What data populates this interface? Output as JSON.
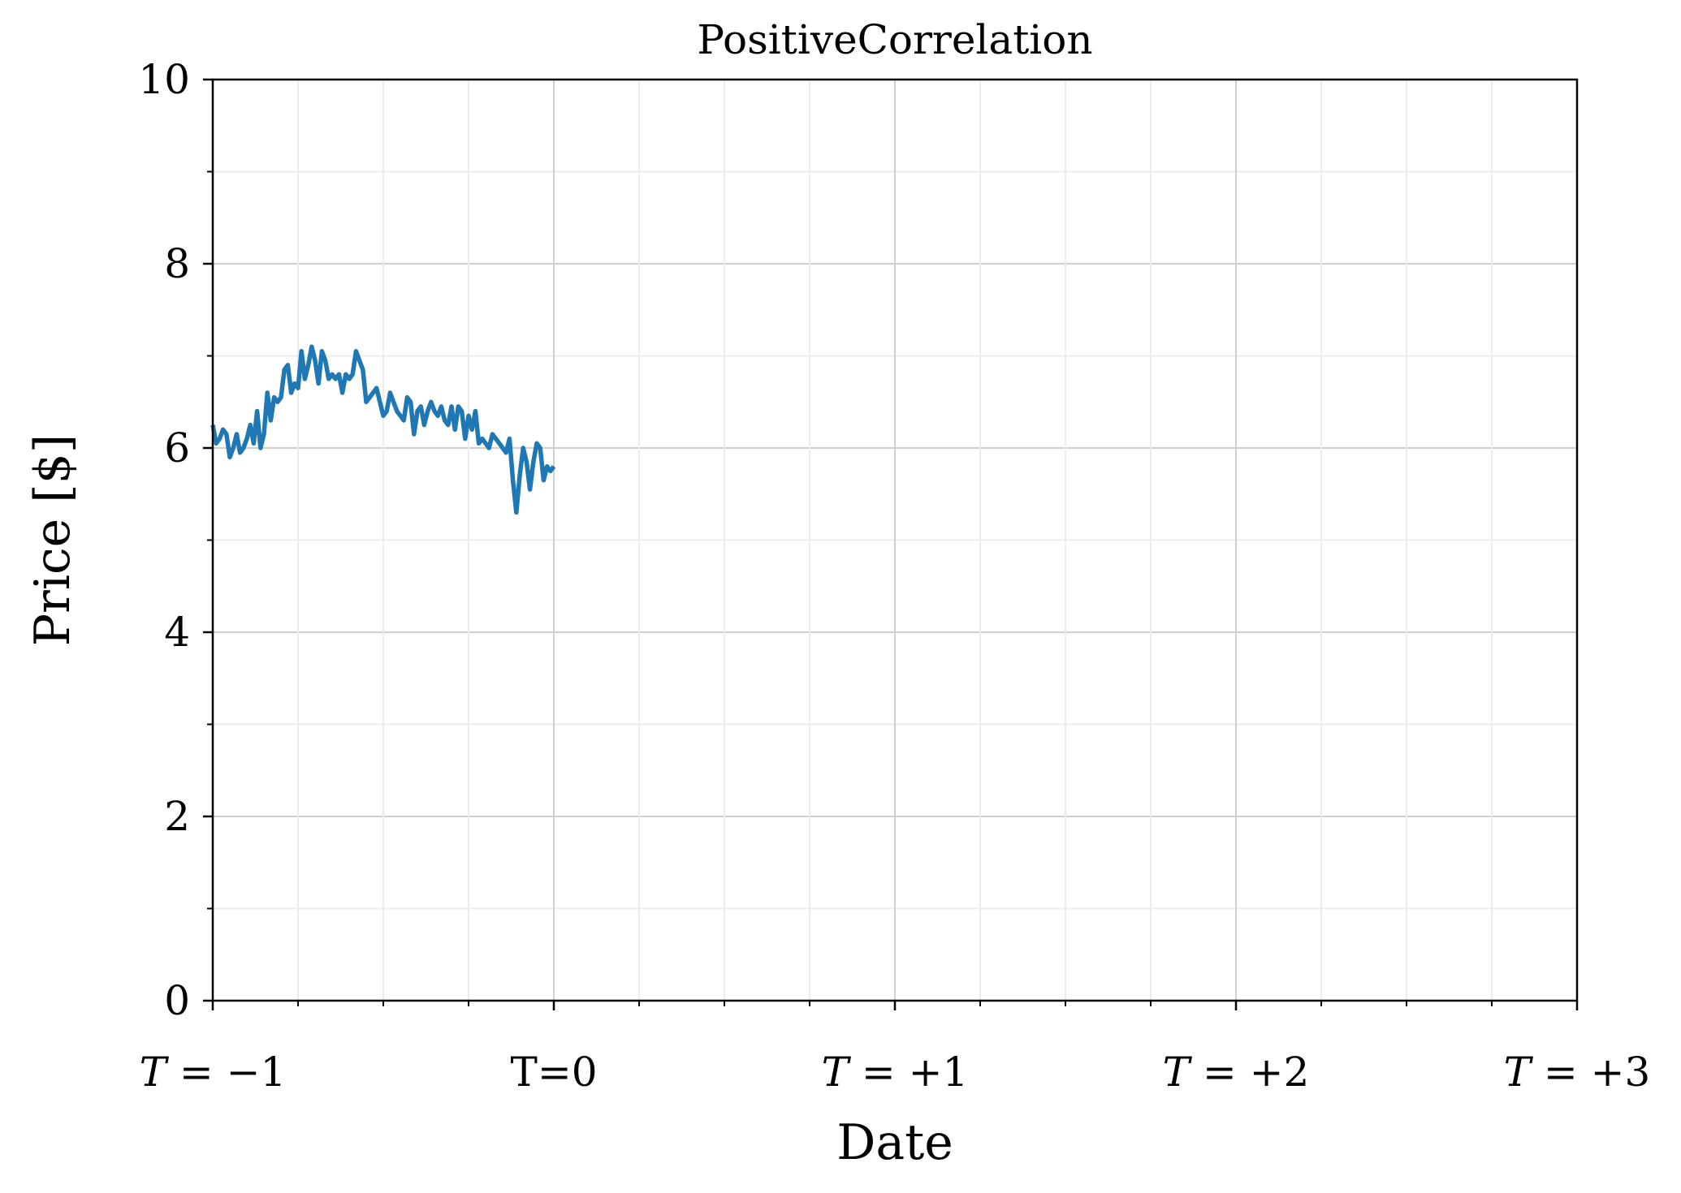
{
  "chart_data": {
    "type": "line",
    "title": "PositiveCorrelation",
    "xlabel": "Date",
    "ylabel": "Price [$]",
    "xlim": [
      -1,
      3
    ],
    "ylim": [
      0,
      10
    ],
    "grid": true,
    "x_ticks": [
      {
        "value": -1,
        "label": "T = −1",
        "italic_T": true
      },
      {
        "value": 0,
        "label": "T=0",
        "italic_T": false
      },
      {
        "value": 1,
        "label": "T = +1",
        "italic_T": true
      },
      {
        "value": 2,
        "label": "T = +2",
        "italic_T": true
      },
      {
        "value": 3,
        "label": "T = +3",
        "italic_T": true
      }
    ],
    "y_ticks": [
      {
        "value": 0,
        "label": "0"
      },
      {
        "value": 2,
        "label": "2"
      },
      {
        "value": 4,
        "label": "4"
      },
      {
        "value": 6,
        "label": "6"
      },
      {
        "value": 8,
        "label": "8"
      },
      {
        "value": 10,
        "label": "10"
      }
    ],
    "series": [
      {
        "color": "#1f77b4",
        "x": [
          -1.0,
          -0.99,
          -0.98,
          -0.97,
          -0.96,
          -0.95,
          -0.94,
          -0.93,
          -0.92,
          -0.91,
          -0.9,
          -0.89,
          -0.88,
          -0.87,
          -0.86,
          -0.85,
          -0.84,
          -0.83,
          -0.82,
          -0.81,
          -0.8,
          -0.79,
          -0.78,
          -0.77,
          -0.76,
          -0.75,
          -0.74,
          -0.73,
          -0.72,
          -0.71,
          -0.7,
          -0.69,
          -0.68,
          -0.67,
          -0.66,
          -0.65,
          -0.64,
          -0.63,
          -0.62,
          -0.61,
          -0.6,
          -0.59,
          -0.58,
          -0.57,
          -0.56,
          -0.55,
          -0.54,
          -0.53,
          -0.52,
          -0.51,
          -0.5,
          -0.49,
          -0.48,
          -0.47,
          -0.46,
          -0.45,
          -0.44,
          -0.43,
          -0.42,
          -0.41,
          -0.4,
          -0.39,
          -0.38,
          -0.37,
          -0.36,
          -0.35,
          -0.34,
          -0.33,
          -0.32,
          -0.31,
          -0.3,
          -0.29,
          -0.28,
          -0.27,
          -0.26,
          -0.25,
          -0.24,
          -0.23,
          -0.22,
          -0.21,
          -0.2,
          -0.19,
          -0.18,
          -0.17,
          -0.16,
          -0.15,
          -0.14,
          -0.13,
          -0.12,
          -0.11,
          -0.1,
          -0.09,
          -0.08,
          -0.07,
          -0.06,
          -0.05,
          -0.04,
          -0.03,
          -0.02,
          -0.01,
          0.0
        ],
        "y": [
          6.25,
          6.05,
          6.1,
          6.2,
          6.15,
          5.9,
          6.0,
          6.15,
          5.95,
          6.0,
          6.1,
          6.25,
          6.05,
          6.4,
          6.0,
          6.15,
          6.6,
          6.3,
          6.55,
          6.5,
          6.55,
          6.85,
          6.9,
          6.6,
          6.7,
          6.65,
          7.05,
          6.75,
          6.9,
          7.1,
          6.95,
          6.7,
          7.05,
          6.95,
          6.75,
          6.8,
          6.75,
          6.8,
          6.6,
          6.8,
          6.75,
          6.8,
          7.05,
          6.95,
          6.85,
          6.5,
          6.55,
          6.6,
          6.65,
          6.5,
          6.35,
          6.4,
          6.6,
          6.5,
          6.4,
          6.35,
          6.3,
          6.55,
          6.5,
          6.15,
          6.4,
          6.45,
          6.25,
          6.4,
          6.5,
          6.4,
          6.35,
          6.45,
          6.3,
          6.25,
          6.45,
          6.2,
          6.45,
          6.4,
          6.1,
          6.35,
          6.2,
          6.4,
          6.05,
          6.1,
          6.05,
          6.0,
          6.15,
          6.1,
          6.05,
          6.0,
          5.95,
          6.1,
          5.65,
          5.3,
          5.7,
          6.0,
          5.85,
          5.55,
          5.85,
          6.05,
          6.0,
          5.65,
          5.8,
          5.75,
          5.8
        ]
      }
    ]
  }
}
